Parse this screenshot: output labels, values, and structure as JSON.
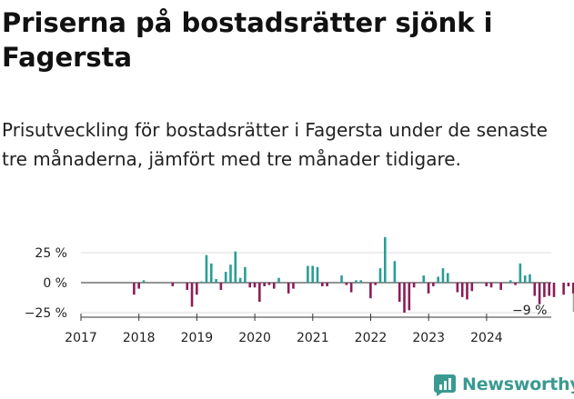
{
  "title": "Priserna på bostadsrätter sjönk i Fagersta",
  "subtitle": "Prisutveckling för bostadsrätter i Fagersta under de senaste tre månaderna, jämfört med tre månader tidigare.",
  "brand": {
    "name": "Newsworthy",
    "logo_icon": "newsworthy-chart-icon"
  },
  "colors": {
    "positive": "#2a9d96",
    "negative": "#8c1d57",
    "grid": "#dddddd",
    "axis": "#333333",
    "brand": "#3a9a92"
  },
  "chart_data": {
    "type": "bar",
    "title": "Priserna på bostadsrätter sjönk i Fagersta",
    "xlabel": "",
    "ylabel": "",
    "ylim": [
      -30,
      40
    ],
    "y_ticks": [
      25,
      0,
      -25
    ],
    "y_tick_labels": [
      "25 %",
      "0 %",
      "−25 %"
    ],
    "x_ticks": [
      2017,
      2018,
      2019,
      2020,
      2021,
      2022,
      2023,
      2024
    ],
    "x_tick_labels": [
      "2017",
      "2018",
      "2019",
      "2020",
      "2021",
      "2022",
      "2023",
      "2024"
    ],
    "start": 2017.0,
    "step": 0.0833,
    "end_label": "−9 %",
    "values": [
      0,
      0,
      0,
      0,
      0,
      0,
      0,
      0,
      0,
      0,
      0,
      -10,
      -5,
      2,
      0,
      0,
      0,
      0,
      0,
      -3,
      0,
      0,
      -6,
      -20,
      -10,
      1,
      23,
      16,
      3,
      -6,
      9,
      15,
      26,
      4,
      13,
      -4,
      -4,
      -16,
      -3,
      -2,
      -5,
      4,
      0,
      -9,
      -5,
      0,
      0,
      14,
      14,
      13,
      -3,
      -3,
      0,
      0,
      6,
      -2,
      -8,
      2,
      2,
      0,
      -13,
      -2,
      12,
      38,
      0,
      18,
      -16,
      -25,
      -23,
      -4,
      0,
      6,
      -9,
      -3,
      5,
      12,
      8,
      0,
      -8,
      -12,
      -14,
      -7,
      0,
      0,
      -3,
      -4,
      0,
      -6,
      0,
      2,
      -2,
      16,
      6,
      7,
      -11,
      -18,
      -12,
      -11,
      -12,
      0,
      -10,
      -3,
      -9
    ]
  }
}
